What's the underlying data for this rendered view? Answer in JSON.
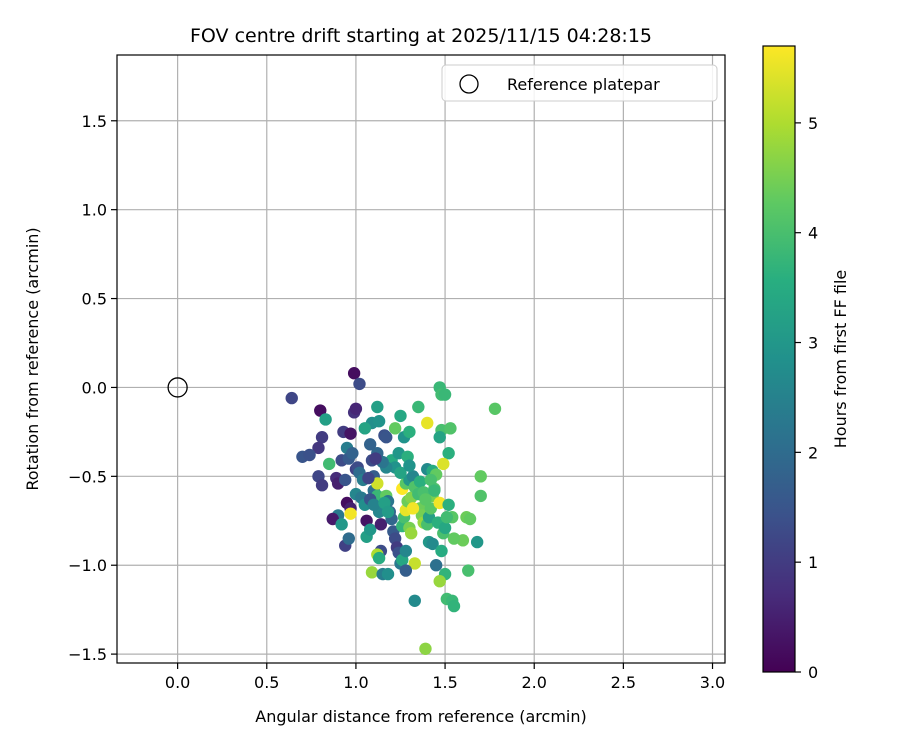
{
  "chart_data": {
    "type": "scatter",
    "title": "FOV centre drift starting at 2025/11/15 04:28:15",
    "xlabel": "Angular distance from reference (arcmin)",
    "ylabel": "Rotation from reference (arcmin)",
    "xlim": [
      -0.34,
      3.07
    ],
    "ylim": [
      -1.55,
      1.87
    ],
    "xticks": [
      0.0,
      0.5,
      1.0,
      1.5,
      2.0,
      2.5,
      3.0
    ],
    "xtick_labels": [
      "0.0",
      "0.5",
      "1.0",
      "1.5",
      "2.0",
      "2.5",
      "3.0"
    ],
    "yticks": [
      -1.5,
      -1.0,
      -0.5,
      0.0,
      0.5,
      1.0,
      1.5
    ],
    "ytick_labels": [
      "−1.5",
      "−1.0",
      "−0.5",
      "0.0",
      "0.5",
      "1.0",
      "1.5"
    ],
    "grid": true,
    "legend": {
      "position": "top-right",
      "entries": [
        "Reference platepar"
      ]
    },
    "reference_point": {
      "name": "Reference platepar",
      "x": 0.0,
      "y": 0.0
    },
    "colorbar": {
      "label": "Hours from first FF file",
      "min": 0,
      "max": 5.7,
      "ticks": [
        0,
        1,
        2,
        3,
        4,
        5
      ],
      "tick_labels": [
        "0",
        "1",
        "2",
        "3",
        "4",
        "5"
      ],
      "colormap": "viridis"
    },
    "points": [
      [
        0.99,
        0.08,
        0.2
      ],
      [
        1.02,
        0.02,
        1.3
      ],
      [
        0.64,
        -0.06,
        1.2
      ],
      [
        0.8,
        -0.13,
        0.2
      ],
      [
        0.99,
        -0.14,
        0.8
      ],
      [
        1.0,
        -0.12,
        0.6
      ],
      [
        0.83,
        -0.18,
        3.2
      ],
      [
        0.93,
        -0.25,
        1.0
      ],
      [
        0.97,
        -0.26,
        0.3
      ],
      [
        0.81,
        -0.28,
        1.0
      ],
      [
        0.79,
        -0.34,
        0.9
      ],
      [
        1.09,
        -0.2,
        2.8
      ],
      [
        1.12,
        -0.11,
        3.2
      ],
      [
        1.05,
        -0.23,
        3.3
      ],
      [
        1.13,
        -0.19,
        2.9
      ],
      [
        1.16,
        -0.27,
        1.4
      ],
      [
        1.17,
        -0.28,
        1.5
      ],
      [
        1.22,
        -0.23,
        4.3
      ],
      [
        1.25,
        -0.16,
        3.4
      ],
      [
        1.27,
        -0.28,
        2.9
      ],
      [
        1.3,
        -0.25,
        3.6
      ],
      [
        1.35,
        -0.11,
        3.8
      ],
      [
        1.4,
        -0.2,
        5.5
      ],
      [
        1.47,
        0.0,
        3.8
      ],
      [
        1.48,
        -0.04,
        3.9
      ],
      [
        1.5,
        -0.04,
        3.8
      ],
      [
        1.78,
        -0.12,
        4.2
      ],
      [
        1.48,
        -0.24,
        4.0
      ],
      [
        1.53,
        -0.23,
        4.1
      ],
      [
        1.47,
        -0.28,
        3.3
      ],
      [
        1.52,
        -0.37,
        3.6
      ],
      [
        1.49,
        -0.43,
        5.4
      ],
      [
        1.7,
        -0.5,
        4.3
      ],
      [
        1.7,
        -0.61,
        4.1
      ],
      [
        1.62,
        -0.73,
        4.4
      ],
      [
        1.64,
        -0.74,
        4.3
      ],
      [
        1.54,
        -0.73,
        4.2
      ],
      [
        1.68,
        -0.87,
        3.0
      ],
      [
        1.6,
        -0.86,
        4.4
      ],
      [
        1.55,
        -0.85,
        4.3
      ],
      [
        1.63,
        -1.03,
        4.0
      ],
      [
        1.5,
        -1.05,
        3.7
      ],
      [
        1.47,
        -1.09,
        4.8
      ],
      [
        1.51,
        -1.19,
        3.9
      ],
      [
        1.54,
        -1.2,
        3.8
      ],
      [
        1.55,
        -1.23,
        3.7
      ],
      [
        1.33,
        -1.2,
        2.7
      ],
      [
        1.39,
        -1.47,
        4.7
      ],
      [
        0.7,
        -0.39,
        1.5
      ],
      [
        0.74,
        -0.38,
        1.4
      ],
      [
        0.79,
        -0.5,
        1.2
      ],
      [
        0.81,
        -0.55,
        1.0
      ],
      [
        0.85,
        -0.43,
        3.9
      ],
      [
        0.89,
        -0.51,
        0.7
      ],
      [
        0.9,
        -0.54,
        0.5
      ],
      [
        0.92,
        -0.41,
        1.3
      ],
      [
        0.95,
        -0.34,
        2.4
      ],
      [
        0.96,
        -0.4,
        1.6
      ],
      [
        0.98,
        -0.37,
        1.8
      ],
      [
        1.0,
        -0.46,
        1.1
      ],
      [
        1.01,
        -0.45,
        1.3
      ],
      [
        0.94,
        -0.52,
        1.5
      ],
      [
        0.95,
        -0.65,
        0.2
      ],
      [
        0.97,
        -0.68,
        0.5
      ],
      [
        0.9,
        -0.72,
        2.3
      ],
      [
        0.87,
        -0.74,
        0.4
      ],
      [
        0.92,
        -0.77,
        3.0
      ],
      [
        0.94,
        -0.89,
        1.1
      ],
      [
        0.96,
        -0.85,
        2.0
      ],
      [
        0.97,
        -0.71,
        5.6
      ],
      [
        1.0,
        -0.6,
        2.6
      ],
      [
        1.03,
        -0.62,
        2.3
      ],
      [
        1.05,
        -0.66,
        2.8
      ],
      [
        1.06,
        -0.75,
        0.3
      ],
      [
        1.06,
        -0.84,
        3.2
      ],
      [
        1.08,
        -0.8,
        3.0
      ],
      [
        1.09,
        -1.04,
        4.8
      ],
      [
        1.1,
        -0.5,
        1.7
      ],
      [
        1.1,
        -0.58,
        2.1
      ],
      [
        1.12,
        -0.54,
        5.3
      ],
      [
        1.12,
        -0.61,
        3.8
      ],
      [
        1.13,
        -0.7,
        2.6
      ],
      [
        1.14,
        -0.77,
        0.5
      ],
      [
        1.14,
        -0.92,
        1.3
      ],
      [
        1.12,
        -0.94,
        5.0
      ],
      [
        1.13,
        -0.96,
        3.5
      ],
      [
        1.15,
        -1.05,
        2.4
      ],
      [
        1.18,
        -1.05,
        2.8
      ],
      [
        1.17,
        -0.61,
        4.3
      ],
      [
        1.18,
        -0.64,
        2.2
      ],
      [
        1.19,
        -0.7,
        1.8
      ],
      [
        1.2,
        -0.74,
        1.9
      ],
      [
        1.21,
        -0.81,
        1.6
      ],
      [
        1.22,
        -0.85,
        1.3
      ],
      [
        1.23,
        -0.9,
        1.0
      ],
      [
        1.24,
        -0.93,
        1.4
      ],
      [
        1.25,
        -0.99,
        2.3
      ],
      [
        1.26,
        -0.97,
        3.4
      ],
      [
        1.28,
        -0.92,
        2.6
      ],
      [
        1.26,
        -0.78,
        3.7
      ],
      [
        1.27,
        -0.73,
        4.0
      ],
      [
        1.28,
        -0.69,
        5.5
      ],
      [
        1.29,
        -0.64,
        4.4
      ],
      [
        1.31,
        -0.62,
        4.6
      ],
      [
        1.26,
        -0.57,
        5.7
      ],
      [
        1.28,
        -0.54,
        4.2
      ],
      [
        1.3,
        -0.52,
        3.0
      ],
      [
        1.32,
        -0.5,
        2.6
      ],
      [
        1.33,
        -0.56,
        4.1
      ],
      [
        1.35,
        -0.6,
        3.9
      ],
      [
        1.36,
        -0.68,
        4.4
      ],
      [
        1.37,
        -0.72,
        4.5
      ],
      [
        1.38,
        -0.76,
        4.8
      ],
      [
        1.4,
        -0.77,
        4.0
      ],
      [
        1.41,
        -0.73,
        3.2
      ],
      [
        1.42,
        -0.68,
        4.2
      ],
      [
        1.43,
        -0.61,
        4.5
      ],
      [
        1.44,
        -0.57,
        4.1
      ],
      [
        1.4,
        -0.46,
        2.7
      ],
      [
        1.43,
        -0.47,
        3.5
      ],
      [
        1.45,
        -0.49,
        4.3
      ],
      [
        1.41,
        -0.87,
        3.0
      ],
      [
        1.43,
        -0.88,
        2.7
      ],
      [
        1.45,
        -1.0,
        2.1
      ],
      [
        1.48,
        -0.92,
        3.5
      ],
      [
        1.49,
        -0.82,
        4.0
      ],
      [
        1.47,
        -0.65,
        5.6
      ],
      [
        1.32,
        -0.68,
        5.6
      ],
      [
        1.3,
        -0.79,
        4.5
      ],
      [
        1.31,
        -0.82,
        4.8
      ],
      [
        1.33,
        -0.99,
        5.2
      ],
      [
        1.28,
        -1.03,
        1.7
      ],
      [
        1.2,
        -0.41,
        3.5
      ],
      [
        1.22,
        -0.45,
        2.9
      ],
      [
        1.17,
        -0.45,
        2.6
      ],
      [
        1.15,
        -0.42,
        2.2
      ],
      [
        1.12,
        -0.37,
        1.9
      ],
      [
        1.09,
        -0.41,
        1.3
      ],
      [
        1.08,
        -0.32,
        1.8
      ],
      [
        1.11,
        -0.4,
        1.0
      ],
      [
        1.24,
        -0.37,
        3.0
      ],
      [
        1.25,
        -0.48,
        3.3
      ],
      [
        1.29,
        -0.39,
        3.6
      ],
      [
        1.3,
        -0.44,
        2.9
      ],
      [
        1.02,
        -0.48,
        2.0
      ],
      [
        1.04,
        -0.52,
        2.4
      ],
      [
        1.07,
        -0.51,
        1.2
      ],
      [
        1.08,
        -0.63,
        1.5
      ],
      [
        1.1,
        -0.66,
        2.5
      ],
      [
        1.16,
        -0.65,
        3.2
      ],
      [
        1.18,
        -0.7,
        3.1
      ],
      [
        1.36,
        -0.53,
        3.6
      ],
      [
        1.38,
        -0.59,
        4.0
      ],
      [
        1.39,
        -0.63,
        4.2
      ],
      [
        1.42,
        -0.52,
        4.0
      ],
      [
        1.44,
        -0.58,
        3.8
      ],
      [
        1.46,
        -0.76,
        3.6
      ],
      [
        1.5,
        -0.79,
        3.4
      ],
      [
        1.51,
        -0.73,
        3.9
      ],
      [
        1.52,
        -0.66,
        3.6
      ]
    ]
  }
}
